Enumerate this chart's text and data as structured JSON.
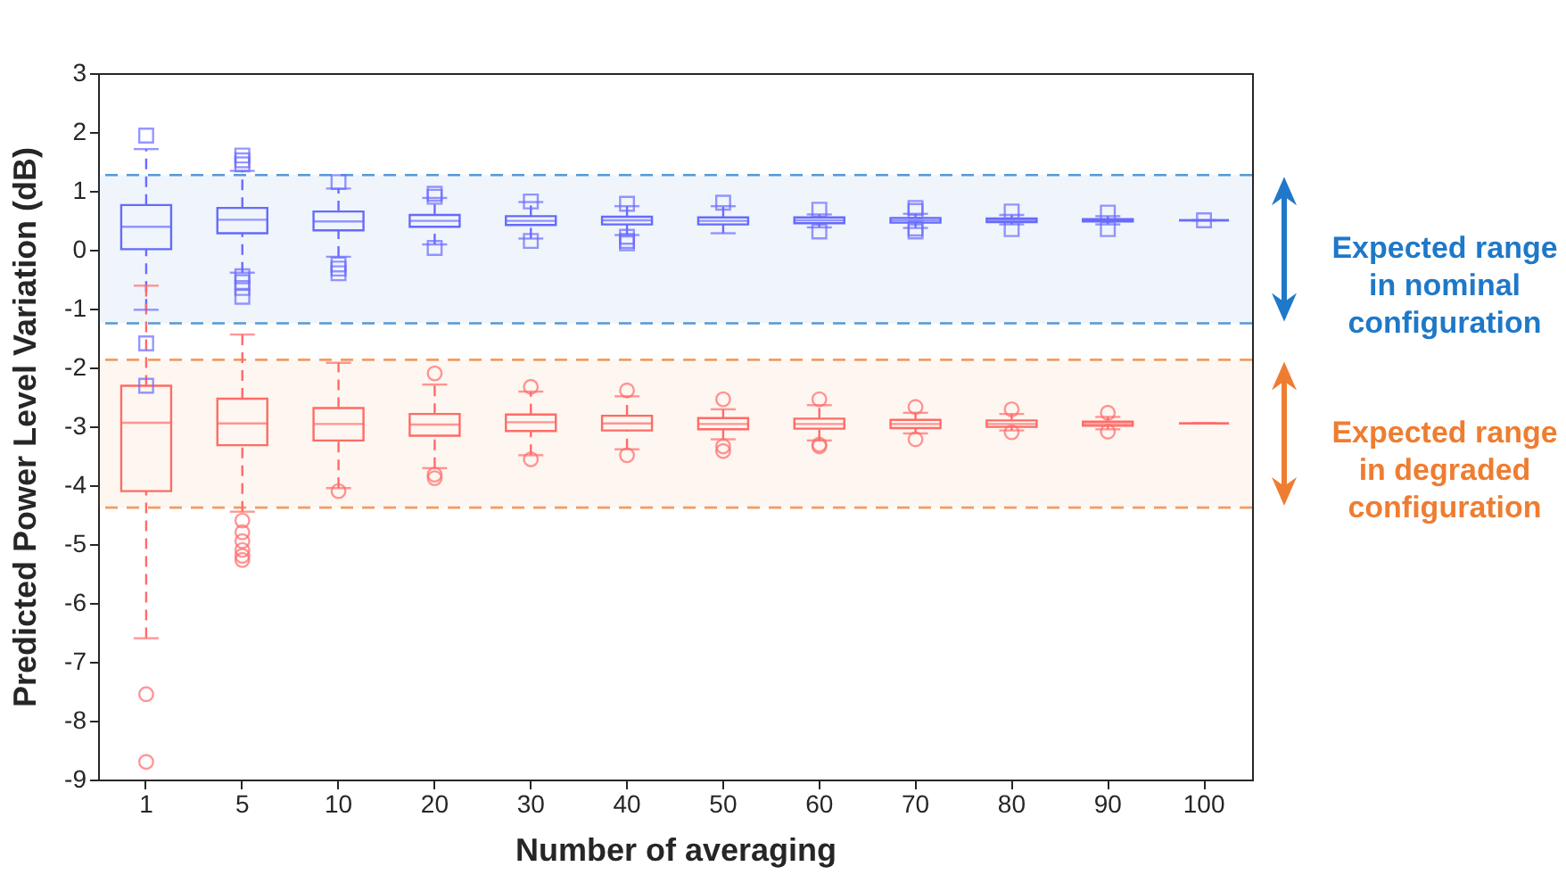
{
  "chart_data": {
    "type": "box",
    "xlabel": "Number of averaging",
    "ylabel": "Predicted Power Level Variation (dB)",
    "categories": [
      "1",
      "5",
      "10",
      "20",
      "30",
      "40",
      "50",
      "60",
      "70",
      "80",
      "90",
      "100"
    ],
    "ylim": [
      -9,
      3
    ],
    "yticks": [
      -9,
      -8,
      -7,
      -6,
      -5,
      -4,
      -3,
      -2,
      -1,
      0,
      1,
      2,
      3
    ],
    "grid": false,
    "series": [
      {
        "color": "#6b6bff",
        "marker": "square",
        "boxes": [
          {
            "low": -1.02,
            "q1": 0.01,
            "median": 0.39,
            "q3": 0.76,
            "high": 1.71,
            "outliers": [
              1.94,
              -1.59,
              -2.31
            ]
          },
          {
            "low": -0.39,
            "q1": 0.28,
            "median": 0.51,
            "q3": 0.71,
            "high": 1.34,
            "outliers": [
              1.45,
              1.52,
              1.6,
              -0.45,
              -0.55,
              -0.65,
              -0.8
            ]
          },
          {
            "low": -0.12,
            "q1": 0.33,
            "median": 0.48,
            "q3": 0.65,
            "high": 1.04,
            "outliers": [
              1.15,
              -0.25,
              -0.32,
              -0.4
            ]
          },
          {
            "low": 0.09,
            "q1": 0.39,
            "median": 0.49,
            "q3": 0.59,
            "high": 0.88,
            "outliers": [
              0.95,
              0.9,
              0.03
            ]
          },
          {
            "low": 0.19,
            "q1": 0.42,
            "median": 0.49,
            "q3": 0.57,
            "high": 0.81,
            "outliers": [
              0.82,
              0.15
            ]
          },
          {
            "low": 0.25,
            "q1": 0.43,
            "median": 0.5,
            "q3": 0.56,
            "high": 0.74,
            "outliers": [
              0.78,
              0.22,
              0.15,
              0.11
            ]
          },
          {
            "low": 0.28,
            "q1": 0.43,
            "median": 0.49,
            "q3": 0.55,
            "high": 0.74,
            "outliers": [
              0.8
            ]
          },
          {
            "low": 0.38,
            "q1": 0.45,
            "median": 0.5,
            "q3": 0.55,
            "high": 0.6,
            "outliers": [
              0.68,
              0.31
            ]
          },
          {
            "low": 0.37,
            "q1": 0.46,
            "median": 0.5,
            "q3": 0.54,
            "high": 0.61,
            "outliers": [
              0.71,
              0.66,
              0.36,
              0.31
            ]
          },
          {
            "low": 0.43,
            "q1": 0.47,
            "median": 0.5,
            "q3": 0.53,
            "high": 0.59,
            "outliers": [
              0.65,
              0.35
            ]
          },
          {
            "low": 0.43,
            "q1": 0.48,
            "median": 0.5,
            "q3": 0.52,
            "high": 0.57,
            "outliers": [
              0.63,
              0.35
            ]
          },
          {
            "low": 0.5,
            "q1": 0.5,
            "median": 0.5,
            "q3": 0.5,
            "high": 0.5,
            "outliers": [
              0.5
            ]
          }
        ]
      },
      {
        "color": "#ff6b6b",
        "marker": "circle",
        "boxes": [
          {
            "low": -6.6,
            "q1": -4.1,
            "median": -2.94,
            "q3": -2.31,
            "high": -0.61,
            "outliers": [
              -7.55,
              -8.7
            ]
          },
          {
            "low": -4.45,
            "q1": -3.32,
            "median": -2.95,
            "q3": -2.53,
            "high": -1.44,
            "outliers": [
              -4.6,
              -4.8,
              -4.95,
              -5.1,
              -5.2,
              -5.27
            ]
          },
          {
            "low": -4.05,
            "q1": -3.24,
            "median": -2.96,
            "q3": -2.69,
            "high": -1.92,
            "outliers": [
              -4.1
            ]
          },
          {
            "low": -3.71,
            "q1": -3.16,
            "median": -2.97,
            "q3": -2.79,
            "high": -2.29,
            "outliers": [
              -2.1,
              -3.82,
              -3.88
            ]
          },
          {
            "low": -3.49,
            "q1": -3.08,
            "median": -2.93,
            "q3": -2.8,
            "high": -2.41,
            "outliers": [
              -2.33,
              -3.56
            ]
          },
          {
            "low": -3.39,
            "q1": -3.07,
            "median": -2.95,
            "q3": -2.82,
            "high": -2.49,
            "outliers": [
              -2.39,
              -3.49
            ]
          },
          {
            "low": -3.22,
            "q1": -3.05,
            "median": -2.96,
            "q3": -2.86,
            "high": -2.71,
            "outliers": [
              -2.54,
              -3.34,
              -3.42
            ]
          },
          {
            "low": -3.24,
            "q1": -3.04,
            "median": -2.96,
            "q3": -2.87,
            "high": -2.64,
            "outliers": [
              -2.54,
              -3.31,
              -3.34
            ]
          },
          {
            "low": -3.12,
            "q1": -3.03,
            "median": -2.96,
            "q3": -2.89,
            "high": -2.77,
            "outliers": [
              -2.67,
              -3.22
            ]
          },
          {
            "low": -3.07,
            "q1": -3.01,
            "median": -2.96,
            "q3": -2.9,
            "high": -2.79,
            "outliers": [
              -2.71,
              -3.1
            ]
          },
          {
            "low": -3.05,
            "q1": -2.99,
            "median": -2.96,
            "q3": -2.92,
            "high": -2.84,
            "outliers": [
              -2.77,
              -3.09
            ]
          },
          {
            "low": -2.95,
            "q1": -2.95,
            "median": -2.95,
            "q3": -2.95,
            "high": -2.95
          }
        ]
      }
    ],
    "ref_lines": [
      {
        "axis": "y",
        "value": 1.27,
        "color": "#1f78c8",
        "line_style": "dashed"
      },
      {
        "axis": "y",
        "value": -1.25,
        "color": "#1f78c8",
        "line_style": "dashed"
      },
      {
        "axis": "y",
        "value": -1.87,
        "color": "#ee7d31",
        "line_style": "dashed"
      },
      {
        "axis": "y",
        "value": -4.38,
        "color": "#ee7d31",
        "line_style": "dashed"
      }
    ],
    "bands": [
      {
        "axis": "y",
        "from": -1.25,
        "to": 1.27,
        "label": "Expected range\nin nominal\nconfiguration",
        "color": "#1f78c8"
      },
      {
        "axis": "y",
        "from": -4.38,
        "to": -1.87,
        "label": "Expected range\nin degraded\nconfiguration",
        "color": "#ee7d31"
      }
    ]
  }
}
